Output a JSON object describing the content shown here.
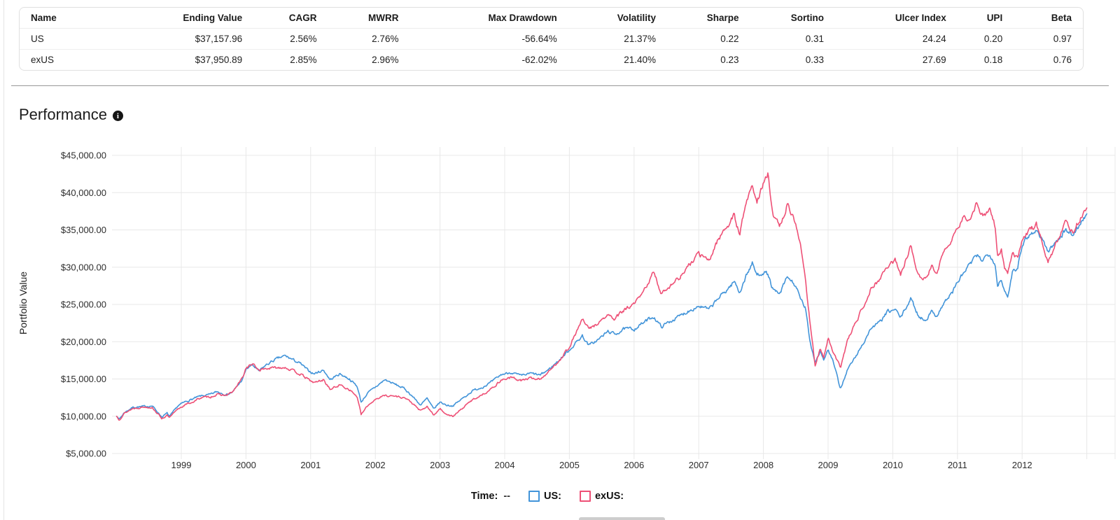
{
  "table": {
    "columns": [
      "Name",
      "Ending Value",
      "CAGR",
      "MWRR",
      "Max Drawdown",
      "Volatility",
      "Sharpe",
      "Sortino",
      "Ulcer Index",
      "UPI",
      "Beta"
    ],
    "rows": [
      {
        "name": "US",
        "values": [
          "$37,157.96",
          "2.56%",
          "2.76%",
          "-56.64%",
          "21.37%",
          "0.22",
          "0.31",
          "24.24",
          "0.20",
          "0.97"
        ]
      },
      {
        "name": "exUS",
        "values": [
          "$37,950.89",
          "2.85%",
          "2.96%",
          "-62.02%",
          "21.40%",
          "0.23",
          "0.33",
          "27.69",
          "0.18",
          "0.76"
        ]
      }
    ]
  },
  "section": {
    "title": "Performance",
    "info_icon_glyph": "i"
  },
  "legend": {
    "time_label": "Time:",
    "time_value": "--",
    "series": [
      {
        "label": "US:"
      },
      {
        "label": "exUS:"
      }
    ]
  },
  "chart_data": {
    "type": "line",
    "title": "Performance",
    "xlabel": "",
    "ylabel": "Portfolio Value",
    "x_range": [
      1998,
      2013
    ],
    "ylim": [
      5000,
      45000
    ],
    "grid": true,
    "legend_position": "bottom",
    "x_ticks": [
      1999,
      2000,
      2001,
      2002,
      2003,
      2004,
      2005,
      2006,
      2007,
      2008,
      2009,
      2010,
      2011,
      2012
    ],
    "y_tick_labels": [
      "$45,000.00",
      "$40,000.00",
      "$35,000.00",
      "$30,000.00",
      "$25,000.00",
      "$20,000.00",
      "$15,000.00",
      "$10,000.00",
      "$5,000.00"
    ],
    "x": [
      1998.0,
      1998.04,
      1998.12,
      1998.25,
      1998.42,
      1998.55,
      1998.62,
      1998.7,
      1998.78,
      1998.82,
      1998.95,
      1999.05,
      1999.2,
      1999.3,
      1999.45,
      1999.55,
      1999.7,
      1999.8,
      1999.95,
      2000.0,
      2000.1,
      2000.2,
      2000.3,
      2000.45,
      2000.6,
      2000.7,
      2000.85,
      2000.95,
      2001.05,
      2001.2,
      2001.3,
      2001.45,
      2001.6,
      2001.72,
      2001.78,
      2001.88,
      2002.0,
      2002.15,
      2002.3,
      2002.45,
      2002.55,
      2002.7,
      2002.8,
      2002.9,
      2003.0,
      2003.1,
      2003.2,
      2003.35,
      2003.5,
      2003.65,
      2003.8,
      2003.95,
      2004.1,
      2004.25,
      2004.4,
      2004.55,
      2004.7,
      2004.85,
      2005.0,
      2005.2,
      2005.3,
      2005.45,
      2005.6,
      2005.7,
      2005.85,
      2006.0,
      2006.12,
      2006.3,
      2006.42,
      2006.55,
      2006.7,
      2006.85,
      2007.0,
      2007.16,
      2007.3,
      2007.42,
      2007.55,
      2007.63,
      2007.75,
      2007.83,
      2007.9,
      2008.0,
      2008.07,
      2008.15,
      2008.25,
      2008.37,
      2008.5,
      2008.57,
      2008.65,
      2008.72,
      2008.8,
      2008.88,
      2008.93,
      2009.0,
      2009.08,
      2009.19,
      2009.3,
      2009.42,
      2009.55,
      2009.67,
      2009.8,
      2009.92,
      2010.04,
      2010.12,
      2010.28,
      2010.4,
      2010.5,
      2010.6,
      2010.68,
      2010.8,
      2010.92,
      2011.0,
      2011.12,
      2011.2,
      2011.3,
      2011.38,
      2011.5,
      2011.58,
      2011.62,
      2011.68,
      2011.73,
      2011.78,
      2011.85,
      2011.93,
      2012.0,
      2012.1,
      2012.22,
      2012.3,
      2012.4,
      2012.5,
      2012.6,
      2012.68,
      2012.78,
      2012.88,
      2012.96,
      2013.0
    ],
    "series": [
      {
        "name": "US",
        "color": "#4294d9",
        "values": [
          10000,
          9600,
          10500,
          11200,
          11300,
          11400,
          10700,
          9900,
          10400,
          9950,
          11400,
          11900,
          12400,
          12700,
          12900,
          13300,
          12900,
          13300,
          15000,
          16300,
          16900,
          16000,
          16800,
          17600,
          18100,
          17700,
          17000,
          16200,
          15700,
          16200,
          14900,
          15700,
          15000,
          14000,
          11900,
          13100,
          13900,
          14900,
          14300,
          13700,
          12900,
          11500,
          12400,
          10950,
          11900,
          11500,
          11400,
          12400,
          13400,
          13900,
          14600,
          15600,
          15900,
          15400,
          15750,
          15500,
          16400,
          17600,
          18900,
          20800,
          19500,
          20300,
          21400,
          21000,
          21700,
          21700,
          22400,
          23400,
          22000,
          22700,
          23400,
          24200,
          24800,
          24300,
          25800,
          26800,
          28100,
          26600,
          29200,
          30500,
          28900,
          29400,
          29000,
          26900,
          26300,
          28700,
          27500,
          25700,
          24500,
          20000,
          17300,
          18800,
          17600,
          18900,
          17300,
          13600,
          16300,
          17900,
          19900,
          21900,
          22600,
          24000,
          24300,
          23200,
          25800,
          23400,
          22900,
          24000,
          23500,
          25300,
          26600,
          28000,
          29500,
          30500,
          31500,
          31000,
          31900,
          30500,
          27600,
          28500,
          26500,
          25900,
          29500,
          30000,
          33200,
          34300,
          34900,
          34000,
          32100,
          33100,
          34300,
          35000,
          34300,
          35700,
          36600,
          37158
        ]
      },
      {
        "name": "exUS",
        "color": "#ee5076",
        "values": [
          10000,
          9550,
          10400,
          11050,
          11250,
          11200,
          10500,
          9700,
          10100,
          9800,
          11000,
          11500,
          12000,
          12500,
          12600,
          12900,
          12800,
          13300,
          15200,
          16500,
          17000,
          16200,
          16400,
          16500,
          16600,
          16200,
          15600,
          15000,
          14500,
          14900,
          13600,
          14200,
          13600,
          12600,
          10200,
          11400,
          12300,
          12800,
          12700,
          12500,
          11900,
          10700,
          11300,
          10150,
          11000,
          10300,
          9950,
          11100,
          12200,
          12900,
          13700,
          14900,
          15200,
          14800,
          15100,
          15000,
          16100,
          17600,
          19300,
          23000,
          21700,
          22500,
          23600,
          23000,
          24300,
          25000,
          26300,
          29300,
          26500,
          27500,
          28600,
          30200,
          31800,
          30800,
          33800,
          35300,
          36900,
          34400,
          39300,
          40800,
          38900,
          41200,
          42400,
          37200,
          35300,
          38400,
          36000,
          32900,
          28500,
          22600,
          16900,
          19000,
          17800,
          20400,
          18500,
          16500,
          20200,
          22400,
          24900,
          27300,
          28400,
          30200,
          30900,
          28900,
          32900,
          28900,
          28300,
          30000,
          29500,
          32000,
          33800,
          35300,
          36900,
          36200,
          38500,
          37000,
          37700,
          35500,
          31800,
          32300,
          30000,
          29400,
          31900,
          31200,
          33800,
          34900,
          35800,
          33900,
          30500,
          32400,
          34700,
          36500,
          34700,
          36200,
          37300,
          37951
        ]
      }
    ]
  }
}
